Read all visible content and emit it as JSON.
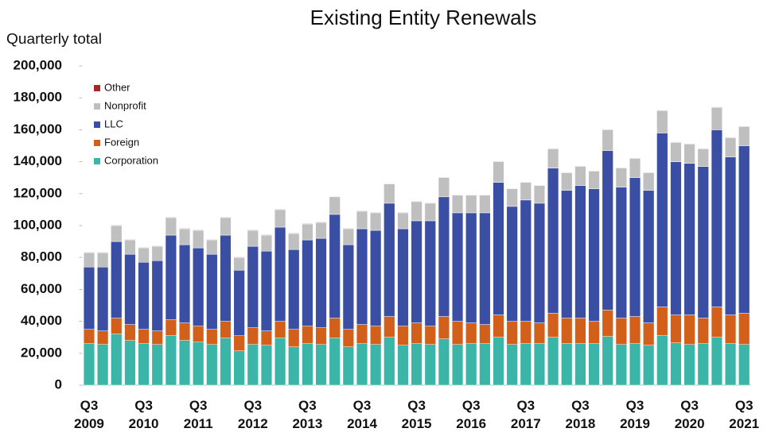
{
  "chart_data": {
    "type": "stacked-bar",
    "title": "Existing Entity Renewals",
    "y_label": "Quarterly total",
    "categories": [
      "Q3 2009",
      null,
      null,
      null,
      "Q3 2010",
      null,
      null,
      null,
      "Q3 2011",
      null,
      null,
      null,
      "Q3 2012",
      null,
      null,
      null,
      "Q3 2013",
      null,
      null,
      null,
      "Q3 2014",
      null,
      null,
      null,
      "Q3 2015",
      null,
      null,
      null,
      "Q3 2016",
      null,
      null,
      null,
      "Q3 2017",
      null,
      null,
      null,
      "Q3 2018",
      null,
      null,
      null,
      "Q3 2019",
      null,
      null,
      null,
      "Q3 2020",
      null,
      null,
      null,
      "Q3 2021"
    ],
    "series": [
      {
        "name": "Corporation",
        "color": "#3ab5a8",
        "values": [
          26000,
          25500,
          32000,
          28000,
          26000,
          25500,
          31000,
          28000,
          27000,
          25500,
          29500,
          21500,
          25500,
          25000,
          29500,
          24000,
          26000,
          25500,
          29500,
          24000,
          26000,
          25500,
          30000,
          25000,
          26000,
          25500,
          29000,
          25500,
          26000,
          26000,
          30000,
          25500,
          26000,
          26000,
          30000,
          26000,
          26000,
          26000,
          30500,
          25500,
          26000,
          25000,
          31000,
          26500,
          25500,
          26000,
          30000,
          26000,
          25500
        ]
      },
      {
        "name": "Foreign",
        "color": "#d2601a",
        "values": [
          9000,
          8500,
          10000,
          10000,
          9000,
          8500,
          10000,
          11000,
          10000,
          9500,
          10500,
          9500,
          10500,
          9000,
          10500,
          11000,
          11000,
          10500,
          12500,
          11000,
          12000,
          11500,
          13000,
          12000,
          13000,
          11500,
          14000,
          14500,
          13000,
          12000,
          14000,
          14500,
          14000,
          13000,
          15000,
          16000,
          16000,
          14000,
          16500,
          16500,
          17000,
          14000,
          18000,
          17500,
          18500,
          16000,
          19000,
          18000,
          19500
        ]
      },
      {
        "name": "LLC",
        "color": "#3a4ea3",
        "values": [
          39000,
          40000,
          48000,
          44000,
          42000,
          44000,
          53000,
          49000,
          49000,
          47000,
          54000,
          41000,
          51000,
          50000,
          59000,
          50000,
          54000,
          56000,
          65000,
          53000,
          60000,
          60000,
          71000,
          61000,
          64000,
          66000,
          75000,
          68000,
          69000,
          70000,
          83000,
          72000,
          76000,
          75000,
          91000,
          80000,
          83000,
          83000,
          100000,
          82000,
          87000,
          83000,
          109000,
          96000,
          95000,
          95000,
          111000,
          99000,
          105000
        ]
      },
      {
        "name": "Nonprofit",
        "color": "#bfbfbf",
        "values": [
          9000,
          9000,
          10000,
          9000,
          9000,
          9000,
          11000,
          10000,
          11000,
          9000,
          11000,
          8000,
          10000,
          10000,
          11000,
          10000,
          10000,
          10000,
          11000,
          10000,
          11000,
          11000,
          12000,
          10000,
          12000,
          11000,
          12000,
          11000,
          11000,
          11000,
          13000,
          11000,
          11000,
          11000,
          12000,
          11000,
          12000,
          11000,
          13000,
          12000,
          12000,
          11000,
          14000,
          12000,
          12000,
          11000,
          14000,
          12000,
          12000
        ]
      },
      {
        "name": "Other",
        "color": "#a5282a",
        "values": [
          300,
          300,
          300,
          300,
          300,
          300,
          300,
          300,
          300,
          300,
          300,
          300,
          300,
          300,
          300,
          300,
          300,
          300,
          300,
          300,
          300,
          300,
          300,
          300,
          300,
          300,
          300,
          300,
          300,
          300,
          300,
          300,
          300,
          300,
          300,
          300,
          300,
          300,
          300,
          300,
          300,
          300,
          300,
          300,
          300,
          300,
          300,
          300,
          300
        ]
      }
    ],
    "ylim": [
      0,
      200000
    ],
    "yticks": [
      0,
      {
        "value": 20000,
        "label": "20,000"
      },
      {
        "value": 40000,
        "label": "40,000"
      },
      {
        "value": 60000,
        "label": "60,000"
      },
      {
        "value": 80000,
        "label": "80,000"
      },
      {
        "value": 100000,
        "label": "100,000"
      },
      {
        "value": 120000,
        "label": "120,000"
      },
      {
        "value": 140000,
        "label": "140,000"
      },
      {
        "value": 160000,
        "label": "160,000"
      },
      {
        "value": 180000,
        "label": "180,000"
      },
      {
        "value": 200000,
        "label": "200,000"
      }
    ],
    "legend": "top-left"
  }
}
